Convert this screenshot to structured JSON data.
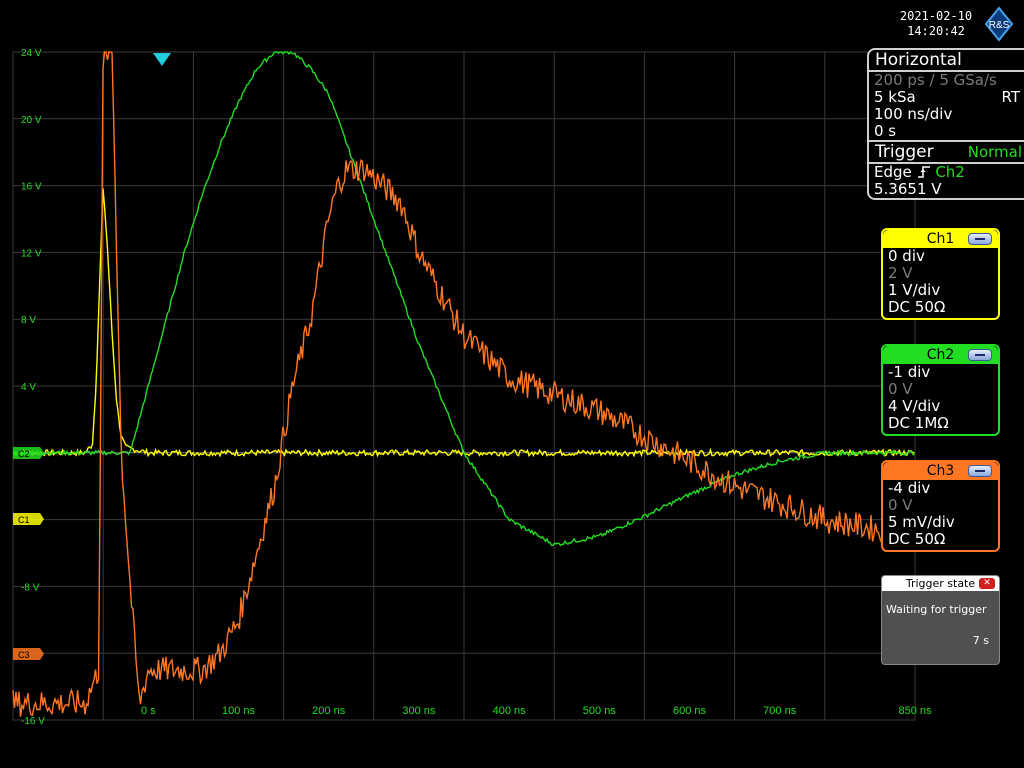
{
  "status": {
    "date": "2021-02-10",
    "time": "14:20:42",
    "logo_text": "R&S"
  },
  "axes": {
    "y_ticks": [
      {
        "label": "24 V",
        "value": 24
      },
      {
        "label": "20 V",
        "value": 20
      },
      {
        "label": "16 V",
        "value": 16
      },
      {
        "label": "12 V",
        "value": 12
      },
      {
        "label": "8 V",
        "value": 8
      },
      {
        "label": "4 V",
        "value": 4
      },
      {
        "label": "-8 V",
        "value": -8
      },
      {
        "label": "-16 V",
        "value": -16
      }
    ],
    "x_ticks": [
      {
        "label": "0 s",
        "value": 0
      },
      {
        "label": "100 ns",
        "value": 100
      },
      {
        "label": "200 ns",
        "value": 200
      },
      {
        "label": "300 ns",
        "value": 300
      },
      {
        "label": "400 ns",
        "value": 400
      },
      {
        "label": "500 ns",
        "value": 500
      },
      {
        "label": "600 ns",
        "value": 600
      },
      {
        "label": "700 ns",
        "value": 700
      },
      {
        "label": "850 ns",
        "value": 850
      }
    ],
    "x_range_ns": [
      -150,
      850
    ],
    "y_range_v": [
      -16,
      24
    ],
    "grid": true
  },
  "markers": {
    "ch1": "C1",
    "ch2": "C2",
    "ch3": "C3"
  },
  "horizontal": {
    "title": "Horizontal",
    "resolution": "200 ps / 5 GSa/s",
    "record_length": "5 kSa",
    "mode": "RT",
    "time_scale": "100 ns/div",
    "position": "0 s"
  },
  "trigger": {
    "title": "Trigger",
    "mode": "Normal",
    "type": "Edge",
    "source": "Ch2",
    "level": "5.3651 V"
  },
  "channels": [
    {
      "name": "Ch1",
      "offset": "0 div",
      "value": "2 V",
      "scale": "1 V/div",
      "coupling": "DC 50Ω",
      "color": "#ffff00"
    },
    {
      "name": "Ch2",
      "offset": "-1 div",
      "value": "0 V",
      "scale": "4 V/div",
      "coupling": "DC 1MΩ",
      "color": "#22dd22"
    },
    {
      "name": "Ch3",
      "offset": "-4 div",
      "value": "0 V",
      "scale": "5 mV/div",
      "coupling": "DC 50Ω",
      "color": "#ff7722"
    }
  ],
  "trigger_state": {
    "title": "Trigger state",
    "message": "Waiting for trigger",
    "time": "7 s"
  },
  "colors": {
    "grid": "#3a3a3a",
    "tick_text": "#22dd22",
    "ch1": "#ffff00",
    "ch2": "#22dd22",
    "ch3": "#ff7722",
    "trigger_marker": "#22ccdd"
  },
  "chart_data": {
    "type": "line",
    "x_unit": "ns",
    "y_unit": "V",
    "series": [
      {
        "name": "Ch1",
        "x": [
          -150,
          -70,
          -62,
          -58,
          -50,
          -45,
          -40,
          -35,
          -30,
          -25,
          -15,
          0,
          50,
          100,
          200,
          300,
          400,
          500,
          600,
          700,
          850
        ],
        "y": [
          0,
          0,
          0.5,
          4,
          16,
          12,
          7,
          3,
          1,
          0.3,
          0.2,
          0,
          0,
          0,
          0,
          0,
          0,
          0,
          0,
          0,
          0
        ]
      },
      {
        "name": "Ch2",
        "x": [
          -150,
          -100,
          -50,
          -20,
          0,
          20,
          40,
          60,
          80,
          100,
          120,
          140,
          160,
          180,
          200,
          220,
          250,
          300,
          350,
          400,
          450,
          500,
          550,
          600,
          650,
          700,
          750,
          850
        ],
        "y": [
          0,
          0,
          0,
          0,
          4,
          8,
          12,
          15.5,
          18.5,
          21,
          23,
          24,
          24,
          23,
          21.5,
          18.5,
          14,
          6.5,
          0,
          -4,
          -5.5,
          -5,
          -3.8,
          -2.5,
          -1.3,
          -0.5,
          0,
          0
        ]
      },
      {
        "name": "Ch3",
        "x": [
          -150,
          -100,
          -70,
          -55,
          -50,
          -45,
          -40,
          -30,
          -20,
          -10,
          0,
          20,
          40,
          60,
          80,
          100,
          120,
          140,
          150,
          160,
          180,
          190,
          200,
          210,
          220,
          240,
          260,
          280,
          300,
          320,
          350,
          400,
          450,
          500,
          550,
          600,
          650,
          700,
          750,
          850
        ],
        "y": [
          -15,
          -15,
          -15,
          -13,
          24,
          24,
          24,
          0,
          -8,
          -15,
          -13,
          -13,
          -13,
          -13,
          -12,
          -10,
          -6,
          -2,
          1,
          4,
          8,
          11,
          14,
          16,
          17,
          17,
          16,
          15,
          12,
          10,
          7,
          4.5,
          3.5,
          2.5,
          1,
          -0.5,
          -2,
          -3,
          -4,
          -5
        ]
      }
    ]
  }
}
